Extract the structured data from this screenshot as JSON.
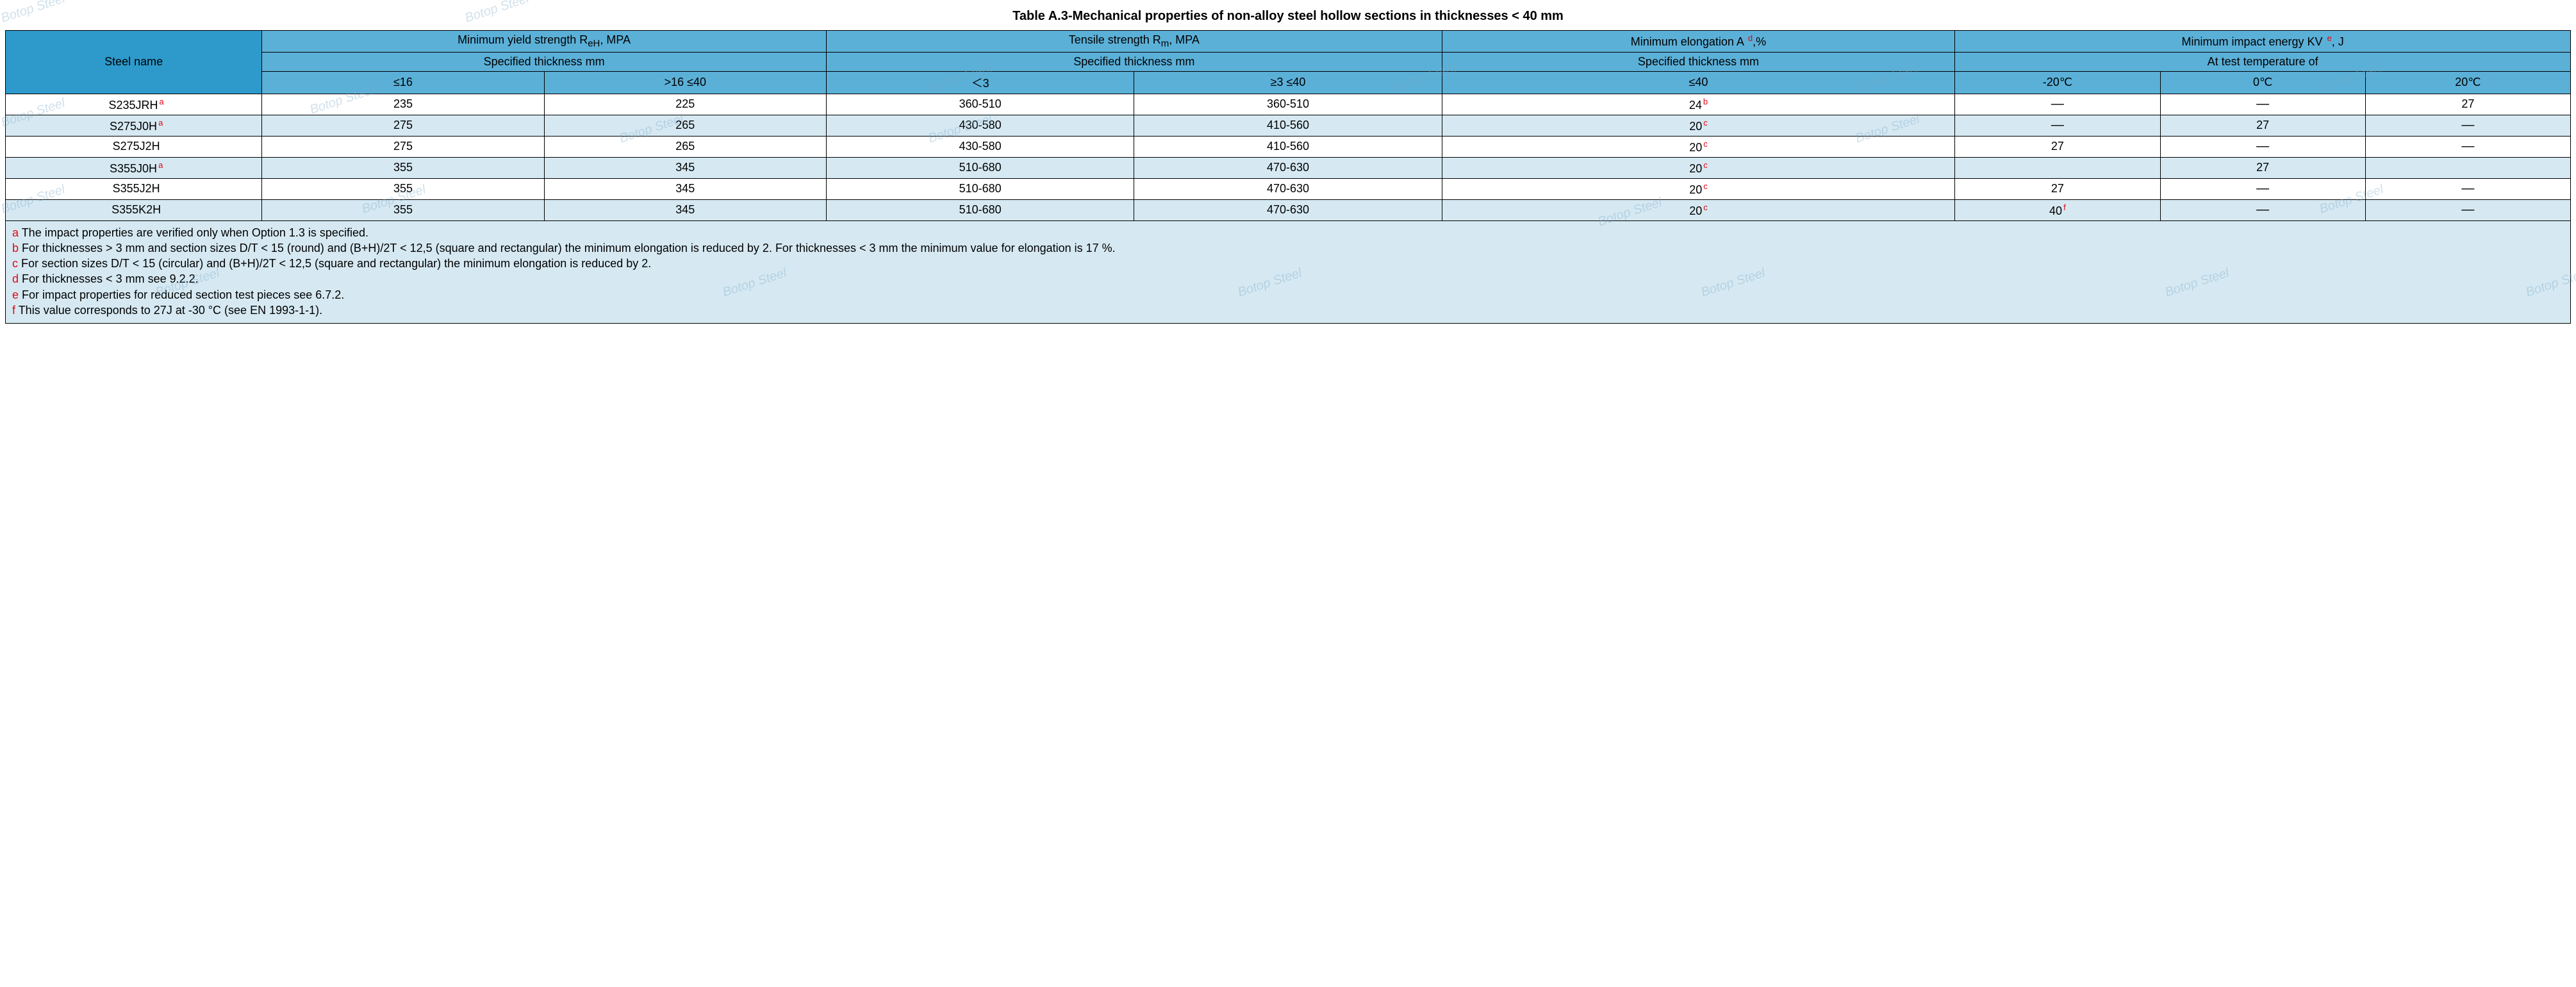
{
  "title": "Table A.3-Mechanical properties of non-alloy steel hollow sections in thicknesses < 40 mm",
  "watermark_text": "Botop Steel",
  "colors": {
    "header_dark": "#2d9acb",
    "header_mid": "#5bb0d8",
    "row_even": "#ffffff",
    "row_odd": "#d6e9f2",
    "footnote_bg": "#d6e9f2",
    "sup_color": "#e30613",
    "border": "#000000"
  },
  "header": {
    "steel_name": "Steel name",
    "yield": {
      "title_pre": "Minimum yield strength R",
      "title_sub": "eH",
      "title_post": ", MPA",
      "sub": "Specified thickness mm",
      "cols": [
        "≤16",
        ">16 ≤40"
      ]
    },
    "tensile": {
      "title_pre": "Tensile strength R",
      "title_sub": "m",
      "title_post": ", MPA",
      "sub": "Specified thickness mm",
      "cols": [
        "＜3",
        "≥3 ≤40"
      ]
    },
    "elong": {
      "title_pre": "Minimum elongation A ",
      "title_sup": "d",
      "title_post": ",%",
      "sub": "Specified thickness mm",
      "cols": [
        "≤40"
      ]
    },
    "impact": {
      "title_pre": "Minimum impact energy KV ",
      "title_sup": "e",
      "title_post": ", J",
      "sub": "At test temperature of",
      "cols": [
        "-20℃",
        "0℃",
        "20℃"
      ]
    }
  },
  "rows": [
    {
      "name": "S235JRH",
      "name_sup": "a",
      "y16": "235",
      "y40": "225",
      "t3": "360-510",
      "t40": "360-510",
      "e": "24",
      "e_sup": "b",
      "i_m20": "—",
      "i_0": "—",
      "i_20": "27"
    },
    {
      "name": "S275J0H",
      "name_sup": "a",
      "y16": "275",
      "y40": "265",
      "t3": "430-580",
      "t40": "410-560",
      "e": "20",
      "e_sup": "c",
      "i_m20": "—",
      "i_0": "27",
      "i_20": "—"
    },
    {
      "name": "S275J2H",
      "name_sup": "",
      "y16": "275",
      "y40": "265",
      "t3": "430-580",
      "t40": "410-560",
      "e": "20",
      "e_sup": "c",
      "i_m20": "27",
      "i_0": "—",
      "i_20": "—"
    },
    {
      "name": "S355J0H",
      "name_sup": "a",
      "y16": "355",
      "y40": "345",
      "t3": "510-680",
      "t40": "470-630",
      "e": "20",
      "e_sup": "c",
      "i_m20": "",
      "i_0": "27",
      "i_20": ""
    },
    {
      "name": "S355J2H",
      "name_sup": "",
      "y16": "355",
      "y40": "345",
      "t3": "510-680",
      "t40": "470-630",
      "e": "20",
      "e_sup": "c",
      "i_m20": "27",
      "i_0": "—",
      "i_20": "—"
    },
    {
      "name": "S355K2H",
      "name_sup": "",
      "y16": "355",
      "y40": "345",
      "t3": "510-680",
      "t40": "470-630",
      "e": "20",
      "e_sup": "c",
      "i_m20": "40",
      "i_m20_sup": "f",
      "i_0": "—",
      "i_20": "—"
    }
  ],
  "footnotes": [
    {
      "key": "a",
      "text": " The impact properties are verified only when Option 1.3 is specified."
    },
    {
      "key": "b",
      "text": " For thicknesses > 3 mm and section sizes D/T < 15 (round) and (B+H)/2T < 12,5 (square and rectangular) the minimum elongation is reduced by 2. For thicknesses < 3 mm the minimum value for elongation is 17 %."
    },
    {
      "key": "c",
      "text": " For section sizes D/T < 15 (circular) and (B+H)/2T < 12,5 (square and rectangular) the minimum elongation is reduced by 2."
    },
    {
      "key": "d",
      "text": " For thicknesses < 3 mm see 9.2.2."
    },
    {
      "key": "e",
      "text": " For impact properties for reduced section test pieces see 6.7.2."
    },
    {
      "key": "f",
      "text": " This value corresponds to 27J at -30 °C (see EN 1993-1-1)."
    }
  ]
}
